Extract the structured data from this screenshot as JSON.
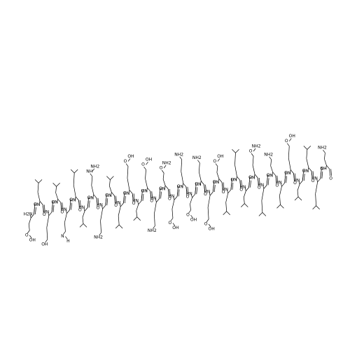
{
  "molecule": {
    "residues": [
      {
        "n": "H2N",
        "o": "O",
        "side": [
          "O",
          "OH"
        ]
      },
      {
        "n": "HN",
        "o": "O"
      },
      {
        "n": "HN",
        "o": "O",
        "side": [
          "OH"
        ]
      },
      {
        "n": "HN",
        "o": "O"
      },
      {
        "n": "HN",
        "o": "O",
        "side": [
          "N",
          "H"
        ]
      },
      {
        "n": "HN",
        "o": "O"
      },
      {
        "n": "HN",
        "o": "O"
      },
      {
        "n": "HN",
        "o": "O",
        "side": [
          "NH",
          "NH2"
        ]
      },
      {
        "n": "HN",
        "o": "O",
        "side": [
          "NH2"
        ]
      },
      {
        "n": "HN",
        "o": "O"
      },
      {
        "n": "HN",
        "o": "O"
      },
      {
        "n": "HN",
        "o": "O",
        "side": [
          "O",
          "OH"
        ]
      },
      {
        "n": "HN",
        "o": "O"
      },
      {
        "n": "HN",
        "o": "O",
        "side": [
          "O",
          "OH"
        ]
      },
      {
        "n": "HN",
        "o": "O",
        "side": [
          "NH2"
        ]
      },
      {
        "n": "HN",
        "o": "O",
        "side": [
          "O",
          "NH2"
        ]
      },
      {
        "n": "HN",
        "o": "O",
        "side": [
          "O",
          "OH"
        ]
      },
      {
        "n": "HN",
        "o": "O",
        "side": [
          "NH2"
        ]
      },
      {
        "n": "HN",
        "o": "O",
        "side": [
          "O",
          "OH"
        ]
      },
      {
        "n": "HN",
        "o": "O",
        "side": [
          "NH2"
        ]
      },
      {
        "n": "HN",
        "o": "O",
        "side": [
          "O",
          "OH"
        ]
      },
      {
        "n": "HN",
        "o": "O",
        "side": [
          "O",
          "OH"
        ]
      },
      {
        "n": "HN",
        "o": "O"
      },
      {
        "n": "HN",
        "o": "O"
      },
      {
        "n": "HN",
        "o": "O"
      },
      {
        "n": "HN",
        "o": "O",
        "side": [
          "O",
          "NH2"
        ]
      },
      {
        "n": "HN",
        "o": "O"
      },
      {
        "n": "HN",
        "o": "O",
        "side": [
          "NH2"
        ]
      },
      {
        "n": "HN",
        "o": "O"
      },
      {
        "n": "HN",
        "o": "O",
        "side": [
          "O",
          "OH"
        ]
      },
      {
        "n": "HN",
        "o": "O"
      },
      {
        "n": "HN",
        "o": "O"
      },
      {
        "n": "HN",
        "o": "O"
      },
      {
        "n": "NH",
        "o": "O",
        "side": [
          "NH2"
        ]
      }
    ]
  }
}
